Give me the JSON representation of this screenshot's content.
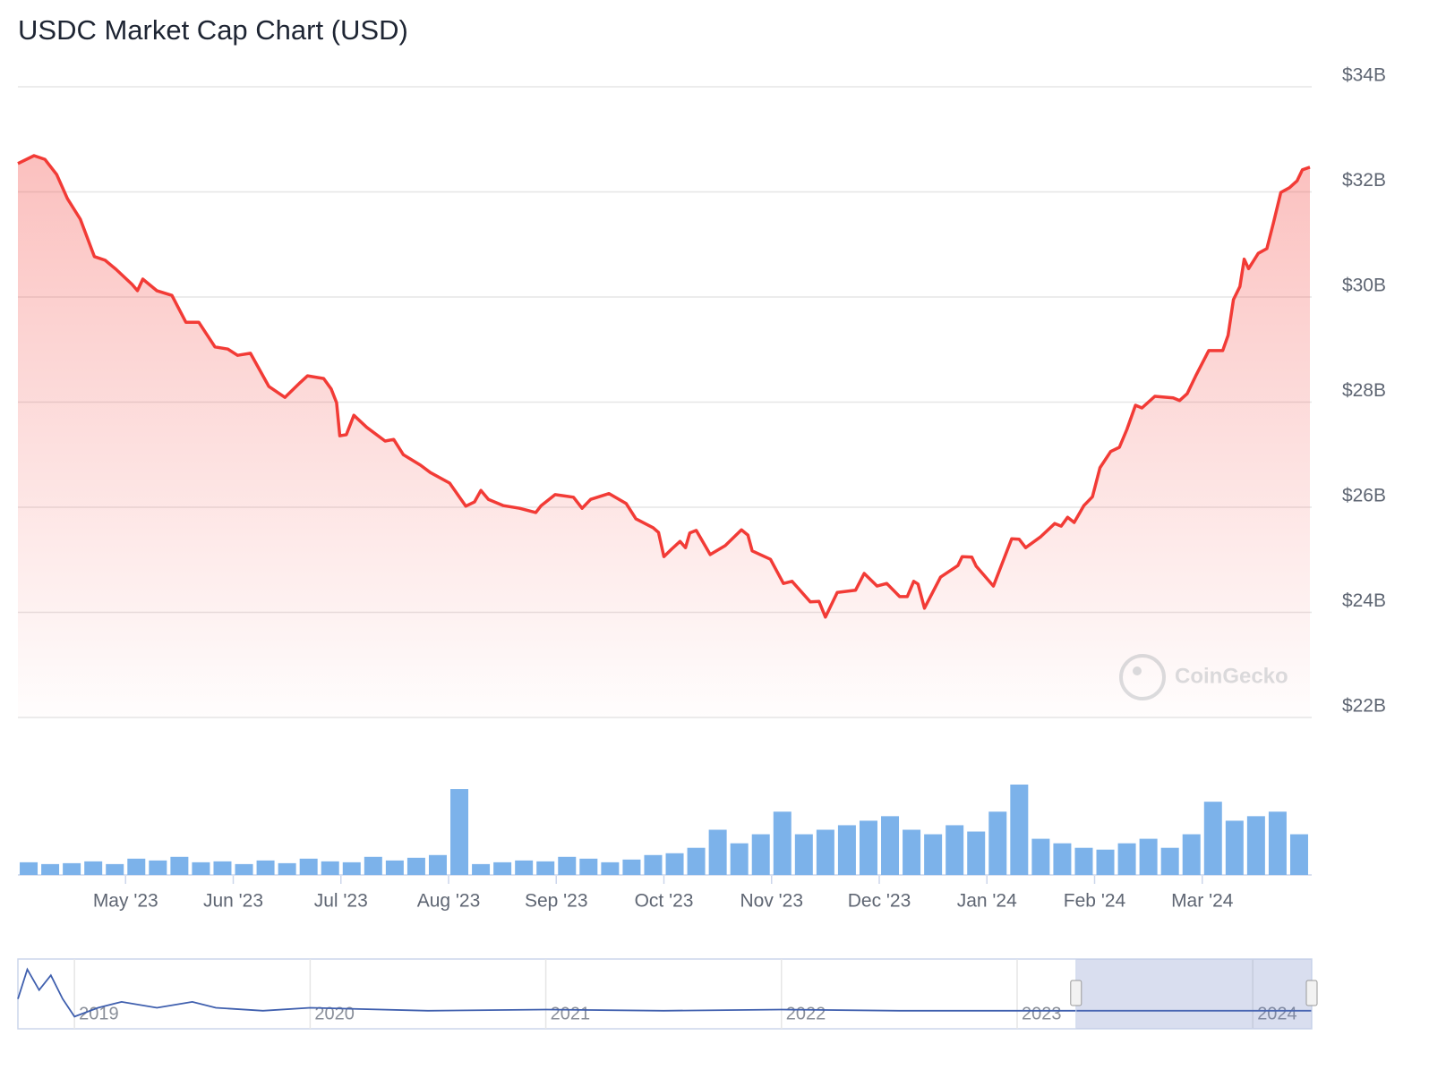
{
  "chart_data": {
    "type": "area",
    "title": "USDC Market Cap Chart (USD)",
    "watermark": "CoinGecko",
    "color": "#f23b36",
    "grid": true,
    "xlim": [
      0,
      12
    ],
    "xticks": [
      {
        "value": 1,
        "label": "May '23"
      },
      {
        "value": 2,
        "label": "Jun '23"
      },
      {
        "value": 3,
        "label": "Jul '23"
      },
      {
        "value": 4,
        "label": "Aug '23"
      },
      {
        "value": 5,
        "label": "Sep '23"
      },
      {
        "value": 6,
        "label": "Oct '23"
      },
      {
        "value": 7,
        "label": "Nov '23"
      },
      {
        "value": 8,
        "label": "Dec '23"
      },
      {
        "value": 9,
        "label": "Jan '24"
      },
      {
        "value": 10,
        "label": "Feb '24"
      },
      {
        "value": 11,
        "label": "Mar '24"
      }
    ],
    "ylim": [
      22,
      34
    ],
    "yticks": [
      {
        "value": 22,
        "label": "$22B"
      },
      {
        "value": 24,
        "label": "$24B"
      },
      {
        "value": 26,
        "label": "$26B"
      },
      {
        "value": 28,
        "label": "$28B"
      },
      {
        "value": 30,
        "label": "$30B"
      },
      {
        "value": 32,
        "label": "$32B"
      },
      {
        "value": 34,
        "label": "$34B"
      }
    ],
    "x": [
      0.0,
      0.15,
      0.25,
      0.36,
      0.46,
      0.58,
      0.71,
      0.81,
      0.91,
      1.06,
      1.11,
      1.16,
      1.29,
      1.43,
      1.56,
      1.68,
      1.83,
      1.95,
      2.04,
      2.16,
      2.33,
      2.48,
      2.62,
      2.69,
      2.84,
      2.91,
      2.96,
      2.99,
      3.05,
      3.12,
      3.24,
      3.41,
      3.49,
      3.58,
      3.74,
      3.83,
      4.01,
      4.16,
      4.24,
      4.3,
      4.37,
      4.51,
      4.66,
      4.81,
      4.86,
      4.99,
      5.16,
      5.24,
      5.32,
      5.49,
      5.65,
      5.74,
      5.9,
      5.95,
      6.0,
      6.07,
      6.15,
      6.2,
      6.24,
      6.3,
      6.43,
      6.57,
      6.72,
      6.78,
      6.82,
      6.99,
      7.11,
      7.19,
      7.36,
      7.44,
      7.5,
      7.61,
      7.78,
      7.86,
      7.98,
      8.07,
      8.19,
      8.26,
      8.32,
      8.36,
      8.42,
      8.57,
      8.73,
      8.77,
      8.86,
      8.9,
      9.06,
      9.23,
      9.3,
      9.36,
      9.5,
      9.63,
      9.69,
      9.75,
      9.81,
      9.9,
      9.98,
      10.05,
      10.15,
      10.23,
      10.3,
      10.38,
      10.44,
      10.56,
      10.73,
      10.79,
      10.86,
      10.94,
      11.06,
      11.19,
      11.24,
      11.29,
      11.35,
      11.39,
      11.43,
      11.52,
      11.6,
      11.66,
      11.73,
      11.81,
      11.88,
      11.93,
      12.0
    ],
    "values": [
      32.54,
      32.69,
      32.62,
      32.33,
      31.87,
      31.48,
      30.77,
      30.7,
      30.53,
      30.24,
      30.12,
      30.34,
      30.12,
      30.03,
      29.52,
      29.52,
      29.05,
      29.01,
      28.89,
      28.93,
      28.3,
      28.09,
      28.37,
      28.5,
      28.45,
      28.25,
      27.99,
      27.36,
      27.38,
      27.75,
      27.52,
      27.26,
      27.29,
      27.0,
      26.8,
      26.66,
      26.46,
      26.02,
      26.1,
      26.32,
      26.15,
      26.03,
      25.98,
      25.9,
      26.03,
      26.24,
      26.19,
      25.98,
      26.15,
      26.26,
      26.07,
      25.78,
      25.61,
      25.52,
      25.06,
      25.2,
      25.35,
      25.23,
      25.51,
      25.56,
      25.1,
      25.27,
      25.57,
      25.47,
      25.17,
      25.01,
      24.55,
      24.59,
      24.2,
      24.21,
      23.91,
      24.38,
      24.42,
      24.74,
      24.5,
      24.55,
      24.3,
      24.3,
      24.59,
      24.54,
      24.08,
      24.67,
      24.89,
      25.06,
      25.05,
      24.88,
      24.5,
      25.4,
      25.39,
      25.23,
      25.44,
      25.69,
      25.64,
      25.81,
      25.71,
      26.03,
      26.2,
      26.75,
      27.06,
      27.14,
      27.48,
      27.94,
      27.89,
      28.11,
      28.08,
      28.03,
      28.16,
      28.5,
      28.98,
      28.98,
      29.27,
      29.95,
      30.2,
      30.72,
      30.54,
      30.83,
      30.92,
      31.4,
      31.99,
      32.08,
      32.21,
      32.42,
      32.47
    ],
    "volume": {
      "color": "#7cb2ea",
      "ylim": [
        0,
        100
      ],
      "x": [
        0.1,
        0.3,
        0.5,
        0.7,
        0.9,
        1.1,
        1.3,
        1.5,
        1.7,
        1.9,
        2.1,
        2.3,
        2.5,
        2.7,
        2.9,
        3.1,
        3.3,
        3.5,
        3.7,
        3.9,
        4.1,
        4.3,
        4.5,
        4.7,
        4.9,
        5.1,
        5.3,
        5.5,
        5.7,
        5.9,
        6.1,
        6.3,
        6.5,
        6.7,
        6.9,
        7.1,
        7.3,
        7.5,
        7.7,
        7.9,
        8.1,
        8.3,
        8.5,
        8.7,
        8.9,
        9.1,
        9.3,
        9.5,
        9.7,
        9.9,
        10.1,
        10.3,
        10.5,
        10.7,
        10.9,
        11.1,
        11.3,
        11.5,
        11.7,
        11.9
      ],
      "values": [
        14,
        12,
        13,
        15,
        12,
        18,
        16,
        20,
        14,
        15,
        12,
        16,
        13,
        18,
        15,
        14,
        20,
        16,
        19,
        22,
        95,
        12,
        14,
        16,
        15,
        20,
        18,
        14,
        17,
        22,
        24,
        30,
        50,
        35,
        45,
        70,
        45,
        50,
        55,
        60,
        65,
        50,
        45,
        55,
        48,
        70,
        100,
        40,
        35,
        30,
        28,
        35,
        40,
        30,
        45,
        81,
        60,
        65,
        70,
        45
      ]
    },
    "navigator": {
      "color": "#3f5fae",
      "xlim": [
        2018.76,
        2024.25
      ],
      "xticks": [
        2019,
        2020,
        2021,
        2022,
        2023,
        2024
      ],
      "ylim": [
        0,
        100
      ],
      "range": [
        2023.25,
        2024.25
      ],
      "x": [
        2018.76,
        2018.8,
        2018.85,
        2018.9,
        2018.95,
        2019.0,
        2019.1,
        2019.2,
        2019.35,
        2019.5,
        2019.6,
        2019.8,
        2020.0,
        2020.5,
        2021.0,
        2021.5,
        2022.0,
        2022.5,
        2023.0,
        2023.5,
        2024.0,
        2024.25
      ],
      "values": [
        40,
        90,
        55,
        80,
        40,
        10,
        25,
        35,
        25,
        35,
        25,
        20,
        25,
        20,
        22,
        20,
        22,
        20,
        20,
        20,
        20,
        20
      ]
    }
  }
}
